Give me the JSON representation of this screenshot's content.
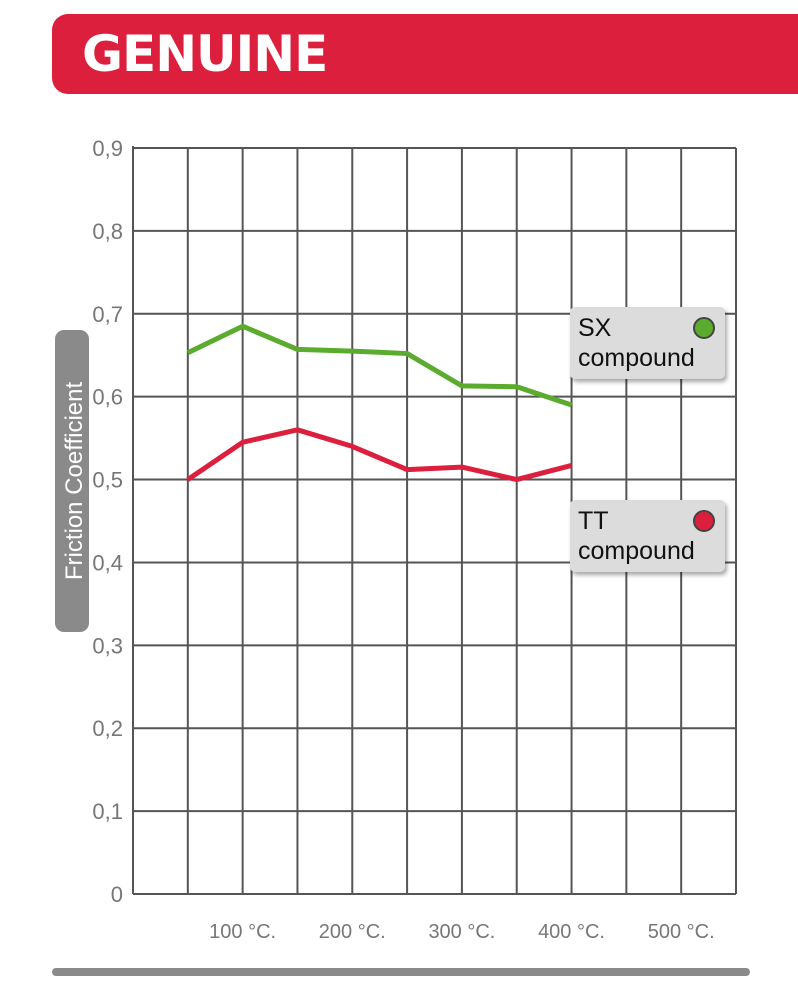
{
  "banner": {
    "title": "GENUINE",
    "color": "#dc1f3c"
  },
  "chart_data": {
    "type": "line",
    "title": "",
    "xlabel": "",
    "ylabel": "Friction Coefficient",
    "y_ticks": [
      "0",
      "0,1",
      "0,2",
      "0,3",
      "0,4",
      "0,5",
      "0,6",
      "0,7",
      "0,8",
      "0,9"
    ],
    "ylim": [
      0,
      0.9
    ],
    "x_ticks": [
      "100 °C.",
      "200 °C.",
      "300 °C.",
      "400 °C.",
      "500 °C."
    ],
    "x": [
      50,
      100,
      150,
      200,
      250,
      300,
      350,
      400
    ],
    "xlim": [
      0,
      550
    ],
    "grid": true,
    "series": [
      {
        "name": "SX compound",
        "color": "#5aab2e",
        "values": [
          0.653,
          0.685,
          0.657,
          0.655,
          0.652,
          0.613,
          0.612,
          0.59
        ]
      },
      {
        "name": "TT compound",
        "color": "#dc1f3c",
        "values": [
          0.5,
          0.545,
          0.56,
          0.54,
          0.512,
          0.515,
          0.5,
          0.517
        ]
      }
    ],
    "legend": [
      {
        "line1": "SX",
        "line2": "compound",
        "dot_color": "#5aab2e"
      },
      {
        "line1": "TT",
        "line2": "compound",
        "dot_color": "#dc1f3c"
      }
    ]
  }
}
